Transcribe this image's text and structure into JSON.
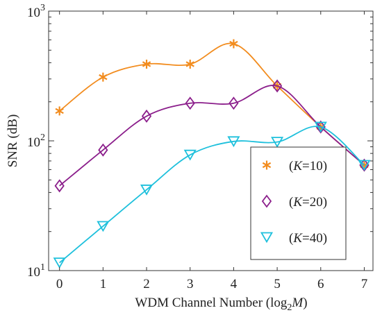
{
  "chart_data": {
    "type": "line",
    "x": [
      0,
      1,
      2,
      3,
      4,
      5,
      6,
      7
    ],
    "xlim": [
      -0.25,
      7.2
    ],
    "xticks": [
      "0",
      "1",
      "2",
      "3",
      "4",
      "5",
      "6",
      "7"
    ],
    "ylim": [
      10,
      1000
    ],
    "yscale": "log",
    "yticks": [
      {
        "value": 10,
        "base": "10",
        "exp": "1"
      },
      {
        "value": 100,
        "base": "10",
        "exp": "2"
      },
      {
        "value": 1000,
        "base": "10",
        "exp": "3"
      }
    ],
    "xlabel": {
      "pre": "WDM Channel Number (log",
      "sub": "2",
      "italic": "M",
      "post": ")"
    },
    "ylabel": "SNR (dB)",
    "grid": false,
    "legend_position": "lower-right",
    "series": [
      {
        "name": "(K=10)",
        "name_parts": {
          "pre": "(",
          "italic": "K",
          "post": "=10)"
        },
        "marker": "asterisk",
        "color": "#F28C1E",
        "values": [
          170,
          310,
          390,
          390,
          560,
          265,
          128,
          65
        ]
      },
      {
        "name": "(K=20)",
        "name_parts": {
          "pre": "(",
          "italic": "K",
          "post": "=20)"
        },
        "marker": "diamond",
        "color": "#8B1E8B",
        "values": [
          45,
          85,
          155,
          195,
          195,
          265,
          128,
          65
        ]
      },
      {
        "name": "(K=40)",
        "name_parts": {
          "pre": "(",
          "italic": "K",
          "post": "=40)"
        },
        "marker": "triangle-down",
        "color": "#1EC0DC",
        "values": [
          11.5,
          22,
          42,
          78,
          99,
          98,
          128,
          65
        ]
      }
    ]
  }
}
